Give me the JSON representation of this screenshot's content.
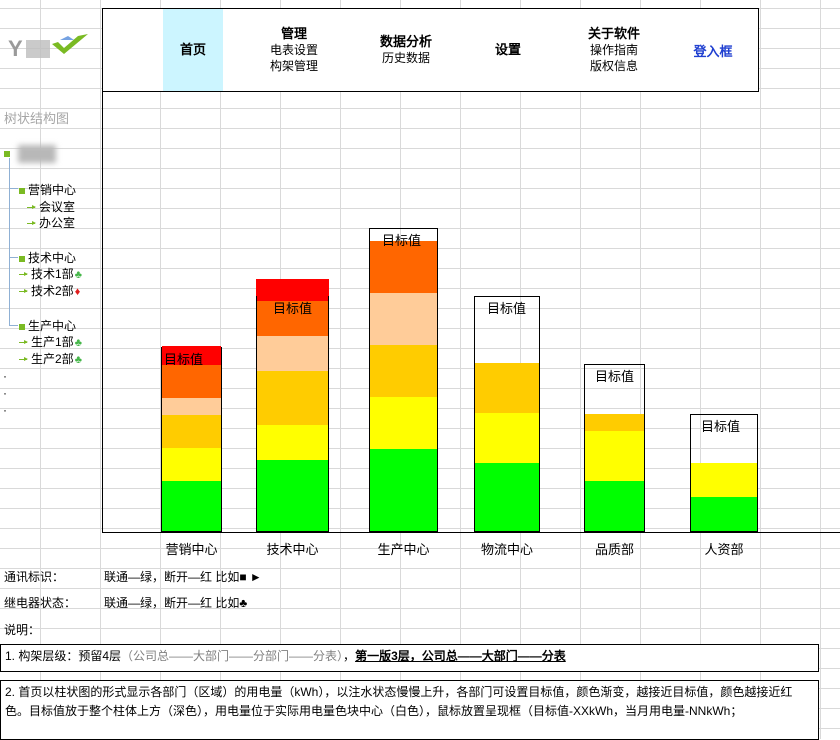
{
  "header": {
    "logo_text": "YCY",
    "nav": [
      {
        "title": "首页",
        "subs": []
      },
      {
        "title": "管理",
        "subs": [
          "电表设置",
          "构架管理"
        ]
      },
      {
        "title": "数据分析",
        "subs": [
          "历史数据"
        ]
      },
      {
        "title": "设置",
        "subs": []
      },
      {
        "title": "关于软件",
        "subs": [
          "操作指南",
          "版权信息"
        ]
      }
    ],
    "login": "登入框"
  },
  "tree": {
    "title": "树状结构图",
    "root_prefix": " ",
    "groups": [
      {
        "label": "营销中心",
        "children": [
          {
            "label": "会议室",
            "mark": ""
          },
          {
            "label": "办公室",
            "mark": ""
          }
        ]
      },
      {
        "label": "技术中心",
        "children": [
          {
            "label": "技术1部",
            "mark": "♣"
          },
          {
            "label": "技术2部",
            "mark": "♦"
          }
        ]
      },
      {
        "label": "生产中心",
        "children": [
          {
            "label": "生产1部",
            "mark": "♣"
          },
          {
            "label": "生产2部",
            "mark": "♣"
          }
        ]
      }
    ],
    "ellipsis": [
      "·",
      "·",
      "·"
    ]
  },
  "chart_data": {
    "type": "bar",
    "target_label": "目标值",
    "categories": [
      "营销中心",
      "技术中心",
      "生产中心",
      "物流中心",
      "品质部",
      "人资部"
    ],
    "colors": {
      "green": "#00ff00",
      "yellow": "#ffff00",
      "amber": "#ffcc00",
      "peach": "#ffcc99",
      "orange": "#ff6600",
      "red": "#ff0000"
    },
    "bars": [
      {
        "category": "营销中心",
        "target_fraction": 0.0,
        "segments": [
          [
            "green",
            0.27
          ],
          [
            "yellow",
            0.18
          ],
          [
            "amber",
            0.18
          ],
          [
            "peach",
            0.09
          ],
          [
            "orange",
            0.18
          ],
          [
            "red",
            0.1
          ]
        ]
      },
      {
        "category": "技术中心",
        "target_fraction": 0.0,
        "overflow": 0.09,
        "segments": [
          [
            "green",
            0.3
          ],
          [
            "yellow",
            0.15
          ],
          [
            "amber",
            0.23
          ],
          [
            "peach",
            0.15
          ],
          [
            "orange",
            0.15
          ],
          [
            "red",
            0.08
          ]
        ]
      },
      {
        "category": "生产中心",
        "target_fraction": 0.05,
        "segments": [
          [
            "green",
            0.27
          ],
          [
            "yellow",
            0.17
          ],
          [
            "amber",
            0.17
          ],
          [
            "peach",
            0.17
          ],
          [
            "orange",
            0.17
          ]
        ]
      },
      {
        "category": "物流中心",
        "target_fraction": 0.29,
        "segments": [
          [
            "green",
            0.29
          ],
          [
            "yellow",
            0.21
          ],
          [
            "amber",
            0.21
          ]
        ]
      },
      {
        "category": "品质部",
        "target_fraction": 0.3,
        "segments": [
          [
            "green",
            0.3
          ],
          [
            "yellow",
            0.3
          ],
          [
            "amber",
            0.1
          ]
        ]
      },
      {
        "category": "人资部",
        "target_fraction": 0.42,
        "segments": [
          [
            "green",
            0.29
          ],
          [
            "yellow",
            0.29
          ]
        ]
      }
    ]
  },
  "info": {
    "comm_label": "通讯标识：",
    "comm_value": "联通—绿，断开—红 比如■ ►",
    "relay_label": "继电器状态：",
    "relay_value": "联通—绿，断开—红 比如♣",
    "note_label": "说明："
  },
  "notes": {
    "n1_a": "1. 构架层级：预留4层",
    "n1_b": "（公司总——大部门——分部门——分表）",
    "n1_c": "，",
    "n1_d": "第一版3层，公司总——大部门——分表",
    "n2": "2. 首页以柱状图的形式显示各部门（区域）的用电量（kWh），以注水状态慢慢上升，各部门可设置目标值，颜色渐变，越接近目标值，颜色越接近红色。目标值放于整个柱体上方（深色），用电量位于实际用电量色块中心（白色），鼠标放置呈现框（目标值-XXkWh，当月用电量-NNkWh；"
  }
}
